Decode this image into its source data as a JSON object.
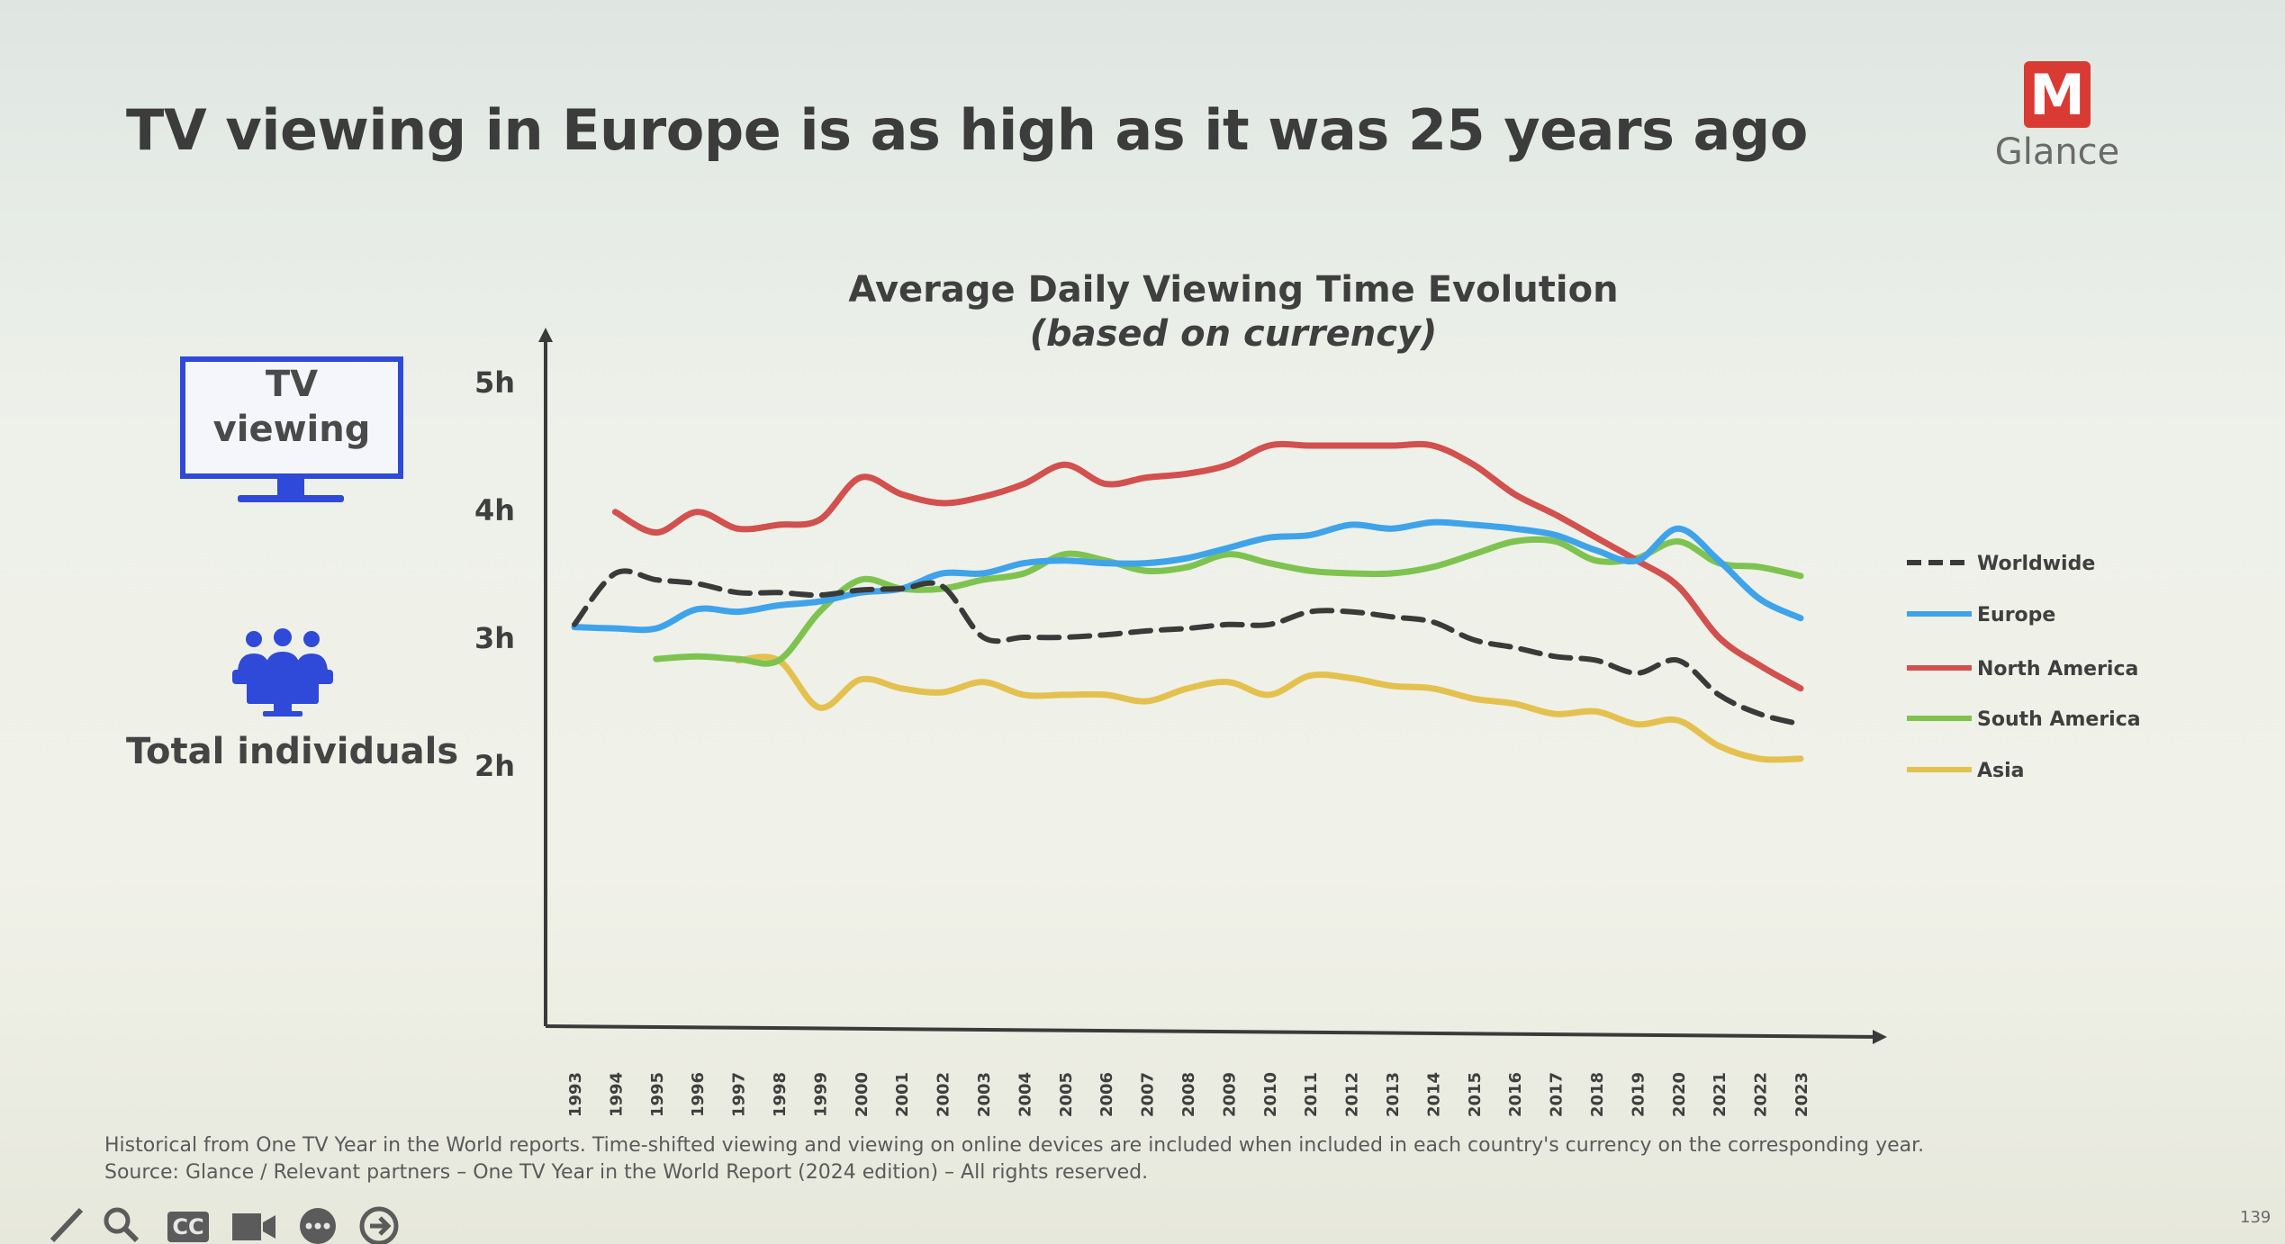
{
  "slide": {
    "headline": "TV viewing in Europe is as high as it was 25 years ago",
    "logo_text": "Glance",
    "logo_letter": "M",
    "tv_label_line1": "TV",
    "tv_label_line2": "viewing",
    "audience_label": "Total individuals",
    "footnote_line1": "Historical from One TV Year in the World reports. Time-shifted viewing and viewing on online devices are included when included in each country's currency on the corresponding year.",
    "footnote_line2": "Source: Glance / Relevant partners – One TV Year in the World Report (2024 edition) – All rights reserved.",
    "page_number": "139"
  },
  "colors": {
    "brand": "#d93a33",
    "tv_icon": "#2f49d8",
    "worldwide": "#3a3a3a",
    "europe": "#3fa3ea",
    "north_america": "#d2504e",
    "south_america": "#7ec34f",
    "asia": "#e4c14e"
  },
  "toolbar": {
    "icons": [
      "pen-icon",
      "search-icon",
      "closed-captions-icon",
      "camera-icon",
      "more-icon",
      "next-arrow-icon"
    ],
    "cc_label": "CC"
  },
  "chart_data": {
    "type": "line",
    "title": "Average Daily Viewing Time Evolution",
    "subtitle": "(based on currency)",
    "xlabel": "",
    "ylabel": "",
    "ylim": [
      0,
      5.3
    ],
    "yticks": [
      2,
      3,
      4,
      5
    ],
    "ytick_labels": [
      "2h",
      "3h",
      "4h",
      "5h"
    ],
    "legend_position": "right",
    "categories": [
      "1993",
      "1994",
      "1995",
      "1996",
      "1997",
      "1998",
      "1999",
      "2000",
      "2001",
      "2002",
      "2003",
      "2004",
      "2005",
      "2006",
      "2007",
      "2008",
      "2009",
      "2010",
      "2011",
      "2012",
      "2013",
      "2014",
      "2015",
      "2016",
      "2017",
      "2018",
      "2019",
      "2020",
      "2021",
      "2022",
      "2023"
    ],
    "series": [
      {
        "name": "Worldwide",
        "style": "dashed",
        "values": [
          3.1,
          3.5,
          3.45,
          3.42,
          3.35,
          3.35,
          3.33,
          3.37,
          3.38,
          3.4,
          3.0,
          3.0,
          3.0,
          3.02,
          3.05,
          3.07,
          3.1,
          3.1,
          3.2,
          3.2,
          3.16,
          3.12,
          2.98,
          2.92,
          2.85,
          2.82,
          2.72,
          2.82,
          2.55,
          2.4,
          2.32
        ]
      },
      {
        "name": "Europe",
        "style": "solid",
        "values": [
          3.08,
          3.07,
          3.07,
          3.22,
          3.2,
          3.25,
          3.28,
          3.35,
          3.38,
          3.5,
          3.5,
          3.58,
          3.6,
          3.58,
          3.58,
          3.62,
          3.7,
          3.78,
          3.8,
          3.88,
          3.85,
          3.9,
          3.88,
          3.85,
          3.8,
          3.68,
          3.6,
          3.85,
          3.6,
          3.3,
          3.15
        ]
      },
      {
        "name": "North America",
        "style": "solid",
        "values": [
          null,
          3.98,
          3.82,
          3.98,
          3.85,
          3.88,
          3.92,
          4.25,
          4.12,
          4.05,
          4.1,
          4.2,
          4.35,
          4.2,
          4.25,
          4.28,
          4.35,
          4.5,
          4.5,
          4.5,
          4.5,
          4.5,
          4.35,
          4.12,
          3.96,
          3.78,
          3.6,
          3.4,
          3.0,
          2.78,
          2.6
        ]
      },
      {
        "name": "South America",
        "style": "solid",
        "values": [
          null,
          null,
          2.83,
          2.85,
          2.83,
          2.82,
          3.2,
          3.45,
          3.38,
          3.38,
          3.45,
          3.5,
          3.65,
          3.6,
          3.52,
          3.55,
          3.65,
          3.58,
          3.52,
          3.5,
          3.5,
          3.55,
          3.65,
          3.75,
          3.75,
          3.6,
          3.62,
          3.75,
          3.58,
          3.55,
          3.48
        ]
      },
      {
        "name": "Asia",
        "style": "solid",
        "values": [
          null,
          null,
          null,
          null,
          2.82,
          2.82,
          2.45,
          2.67,
          2.6,
          2.57,
          2.65,
          2.55,
          2.55,
          2.55,
          2.5,
          2.6,
          2.65,
          2.55,
          2.7,
          2.68,
          2.62,
          2.6,
          2.52,
          2.48,
          2.4,
          2.42,
          2.32,
          2.35,
          2.15,
          2.05,
          2.05
        ]
      }
    ]
  }
}
